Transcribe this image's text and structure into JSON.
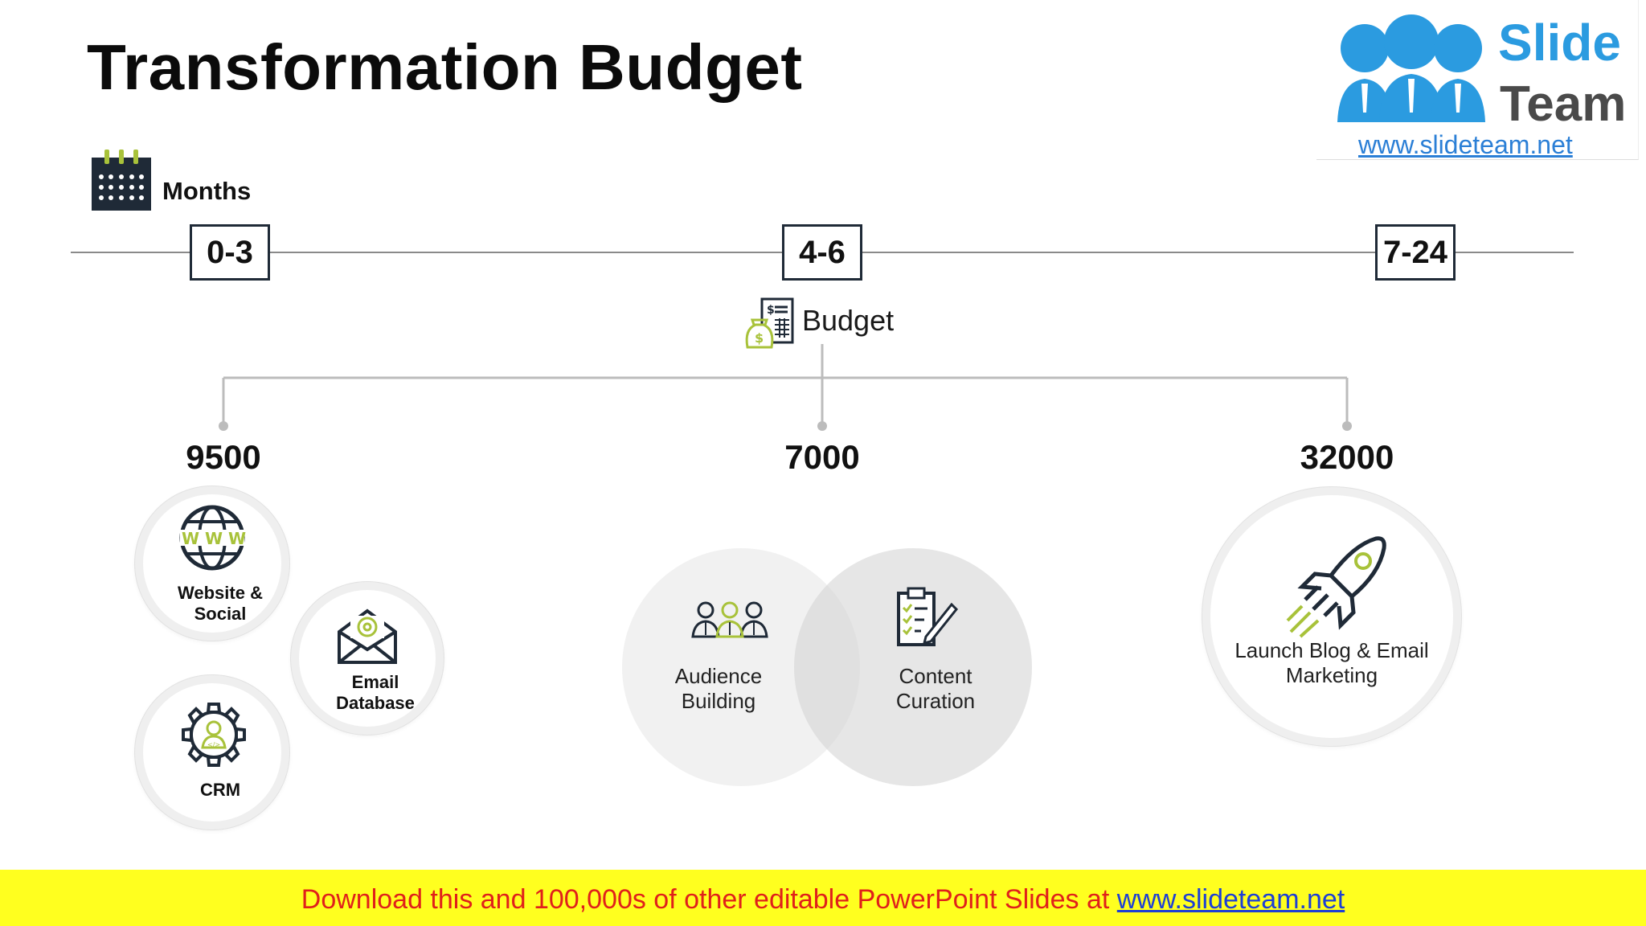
{
  "title": "Transformation Budget",
  "logo": {
    "word1": "Slide",
    "word2": "Team",
    "url": "www.slideteam.net"
  },
  "timeline": {
    "label": "Months",
    "periods": [
      "0-3",
      "4-6",
      "7-24"
    ]
  },
  "budget_label": "Budget",
  "amounts": [
    "9500",
    "7000",
    "32000"
  ],
  "phase1": {
    "items": [
      {
        "label_line1": "Website &",
        "label_line2": "Social",
        "icon": "www-globe-icon"
      },
      {
        "label_line1": "Email",
        "label_line2": "Database",
        "icon": "email-envelope-icon"
      },
      {
        "label_line1": "CRM",
        "icon": "crm-gear-icon"
      }
    ]
  },
  "phase2": {
    "items": [
      {
        "label_line1": "Audience",
        "label_line2": "Building",
        "icon": "audience-people-icon"
      },
      {
        "label_line1": "Content",
        "label_line2": "Curation",
        "icon": "clipboard-checklist-icon"
      }
    ]
  },
  "phase3": {
    "label_line1": "Launch Blog & Email",
    "label_line2": "Marketing",
    "icon": "rocket-icon"
  },
  "footer": {
    "text": "Download this and 100,000s of other editable PowerPoint Slides at ",
    "link": "www.slideteam.net"
  },
  "colors": {
    "dark": "#1f2a37",
    "accent": "#a8c23a",
    "logo_blue": "#2b9be0",
    "footer_bg": "#ffff1f",
    "footer_text": "#e0201b"
  }
}
